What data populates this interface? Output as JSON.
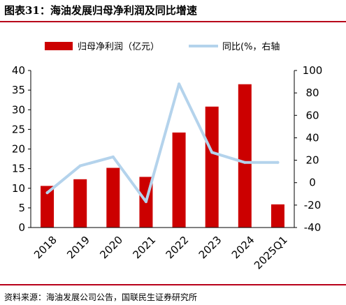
{
  "header": {
    "title": "图表31：海油发展归母净利润及同比增速"
  },
  "footer": {
    "source": "资料来源：海油发展公司公告，国联民生证券研究所"
  },
  "colors": {
    "bar": "#cc0000",
    "line": "#b4d3ec",
    "accent_rule": "#b8001a"
  },
  "chart_data": {
    "type": "bar",
    "categories": [
      "2018",
      "2019",
      "2020",
      "2021",
      "2022",
      "2023",
      "2024",
      "2025Q1"
    ],
    "series": [
      {
        "name": "归母净利润（亿元）",
        "type": "bar",
        "axis": "left",
        "values": [
          10.6,
          12.3,
          15.2,
          12.9,
          24.2,
          30.8,
          36.5,
          5.9
        ]
      },
      {
        "name": "同比(%，右轴",
        "type": "line",
        "axis": "right",
        "values": [
          -9,
          15,
          23,
          -17,
          88,
          27,
          18,
          18
        ]
      }
    ],
    "ylim_left": [
      0,
      40
    ],
    "ylim_right": [
      -40,
      100
    ],
    "yticks_left": [
      "0",
      "5",
      "10",
      "15",
      "20",
      "25",
      "30",
      "35",
      "40"
    ],
    "yticks_right": [
      "-40",
      "-20",
      "0",
      "20",
      "40",
      "60",
      "80",
      "100"
    ],
    "legend": "top",
    "grid": false
  }
}
